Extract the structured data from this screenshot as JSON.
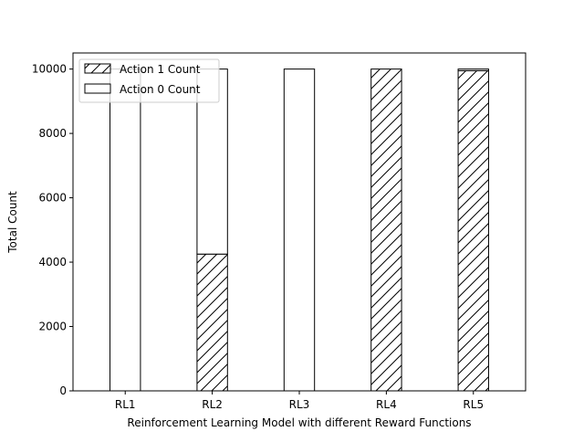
{
  "chart_data": {
    "type": "bar",
    "stacked": true,
    "categories": [
      "RL1",
      "RL2",
      "RL3",
      "RL4",
      "RL5"
    ],
    "series": [
      {
        "name": "Action 1 Count",
        "fill": "hatched",
        "values": [
          0,
          4250,
          0,
          10000,
          9950
        ]
      },
      {
        "name": "Action 0 Count",
        "fill": "white",
        "values": [
          10000,
          5750,
          10000,
          0,
          50
        ]
      }
    ],
    "title": "",
    "xlabel": "Reinforcement Learning Model with different Reward Functions",
    "ylabel": "Total Count",
    "ylim": [
      0,
      10500
    ],
    "yticks": [
      0,
      2000,
      4000,
      6000,
      8000,
      10000
    ],
    "grid": false,
    "legend_position": "top-left",
    "colors": {
      "edge": "#000000",
      "background": "#ffffff"
    }
  }
}
